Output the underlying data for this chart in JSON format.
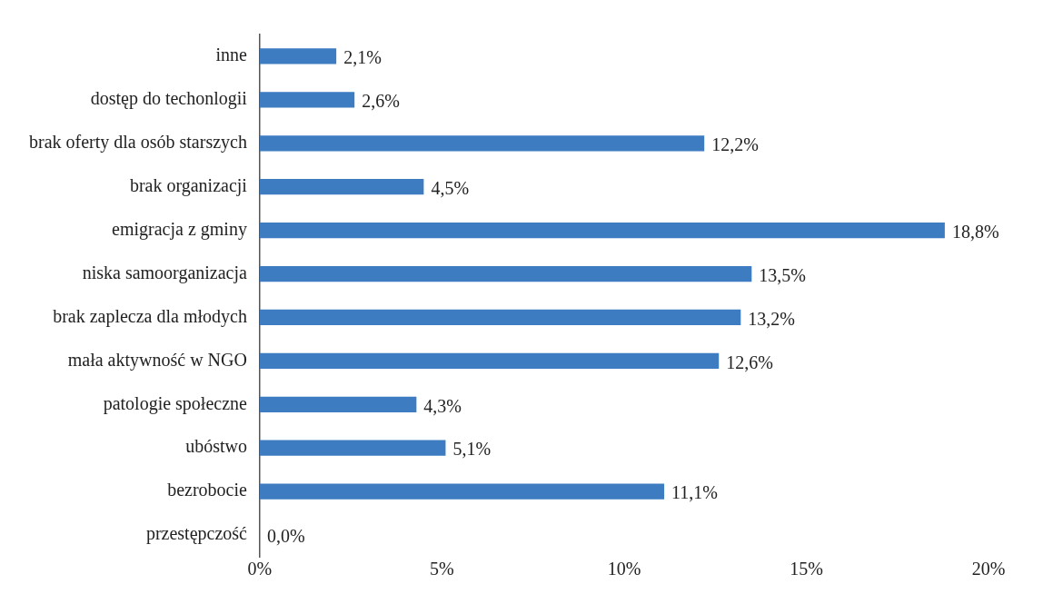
{
  "chart_data": {
    "type": "bar",
    "orientation": "horizontal",
    "categories": [
      "inne",
      "dostęp do techonlogii",
      "brak oferty dla osób starszych",
      "brak organizacji",
      "emigracja z gminy",
      "niska samoorganizacja",
      "brak zaplecza dla młodych",
      "mała aktywność w NGO",
      "patologie społeczne",
      "ubóstwo",
      "bezrobocie",
      "przestępczość"
    ],
    "values": [
      2.1,
      2.6,
      12.2,
      4.5,
      18.8,
      13.5,
      13.2,
      12.6,
      4.3,
      5.1,
      11.1,
      0.0
    ],
    "value_labels": [
      "2,1%",
      "2,6%",
      "12,2%",
      "4,5%",
      "18,8%",
      "13,5%",
      "13,2%",
      "12,6%",
      "4,3%",
      "5,1%",
      "11,1%",
      "0,0%"
    ],
    "color": "#3d7cc1",
    "xlim": [
      0,
      20
    ],
    "xticks": [
      {
        "value": 0,
        "label": "0%"
      },
      {
        "value": 5,
        "label": "5%"
      },
      {
        "value": 10,
        "label": "10%"
      },
      {
        "value": 15,
        "label": "15%"
      },
      {
        "value": 20,
        "label": "20%"
      }
    ],
    "grid": false,
    "legend": false
  }
}
